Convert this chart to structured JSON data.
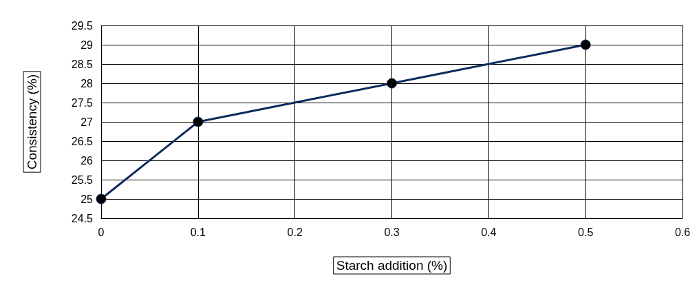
{
  "chart_data": {
    "type": "line",
    "xlabel": "Starch addition (%)",
    "ylabel": "Consistency (%)",
    "x": [
      0,
      0.1,
      0.3,
      0.5
    ],
    "series": [
      {
        "color": "#0f2a5e",
        "values": [
          25,
          27,
          28,
          29
        ]
      }
    ],
    "xlim": [
      0,
      0.6
    ],
    "xticks": [
      0,
      0.1,
      0.2,
      0.3,
      0.4,
      0.5,
      0.6
    ],
    "ylim": [
      24.5,
      29.5
    ],
    "yticks": [
      24.5,
      25,
      25.5,
      26,
      26.5,
      27,
      27.5,
      28,
      28.5,
      29,
      29.5
    ],
    "grid": true,
    "marker": "circle",
    "line_style": "solid"
  }
}
